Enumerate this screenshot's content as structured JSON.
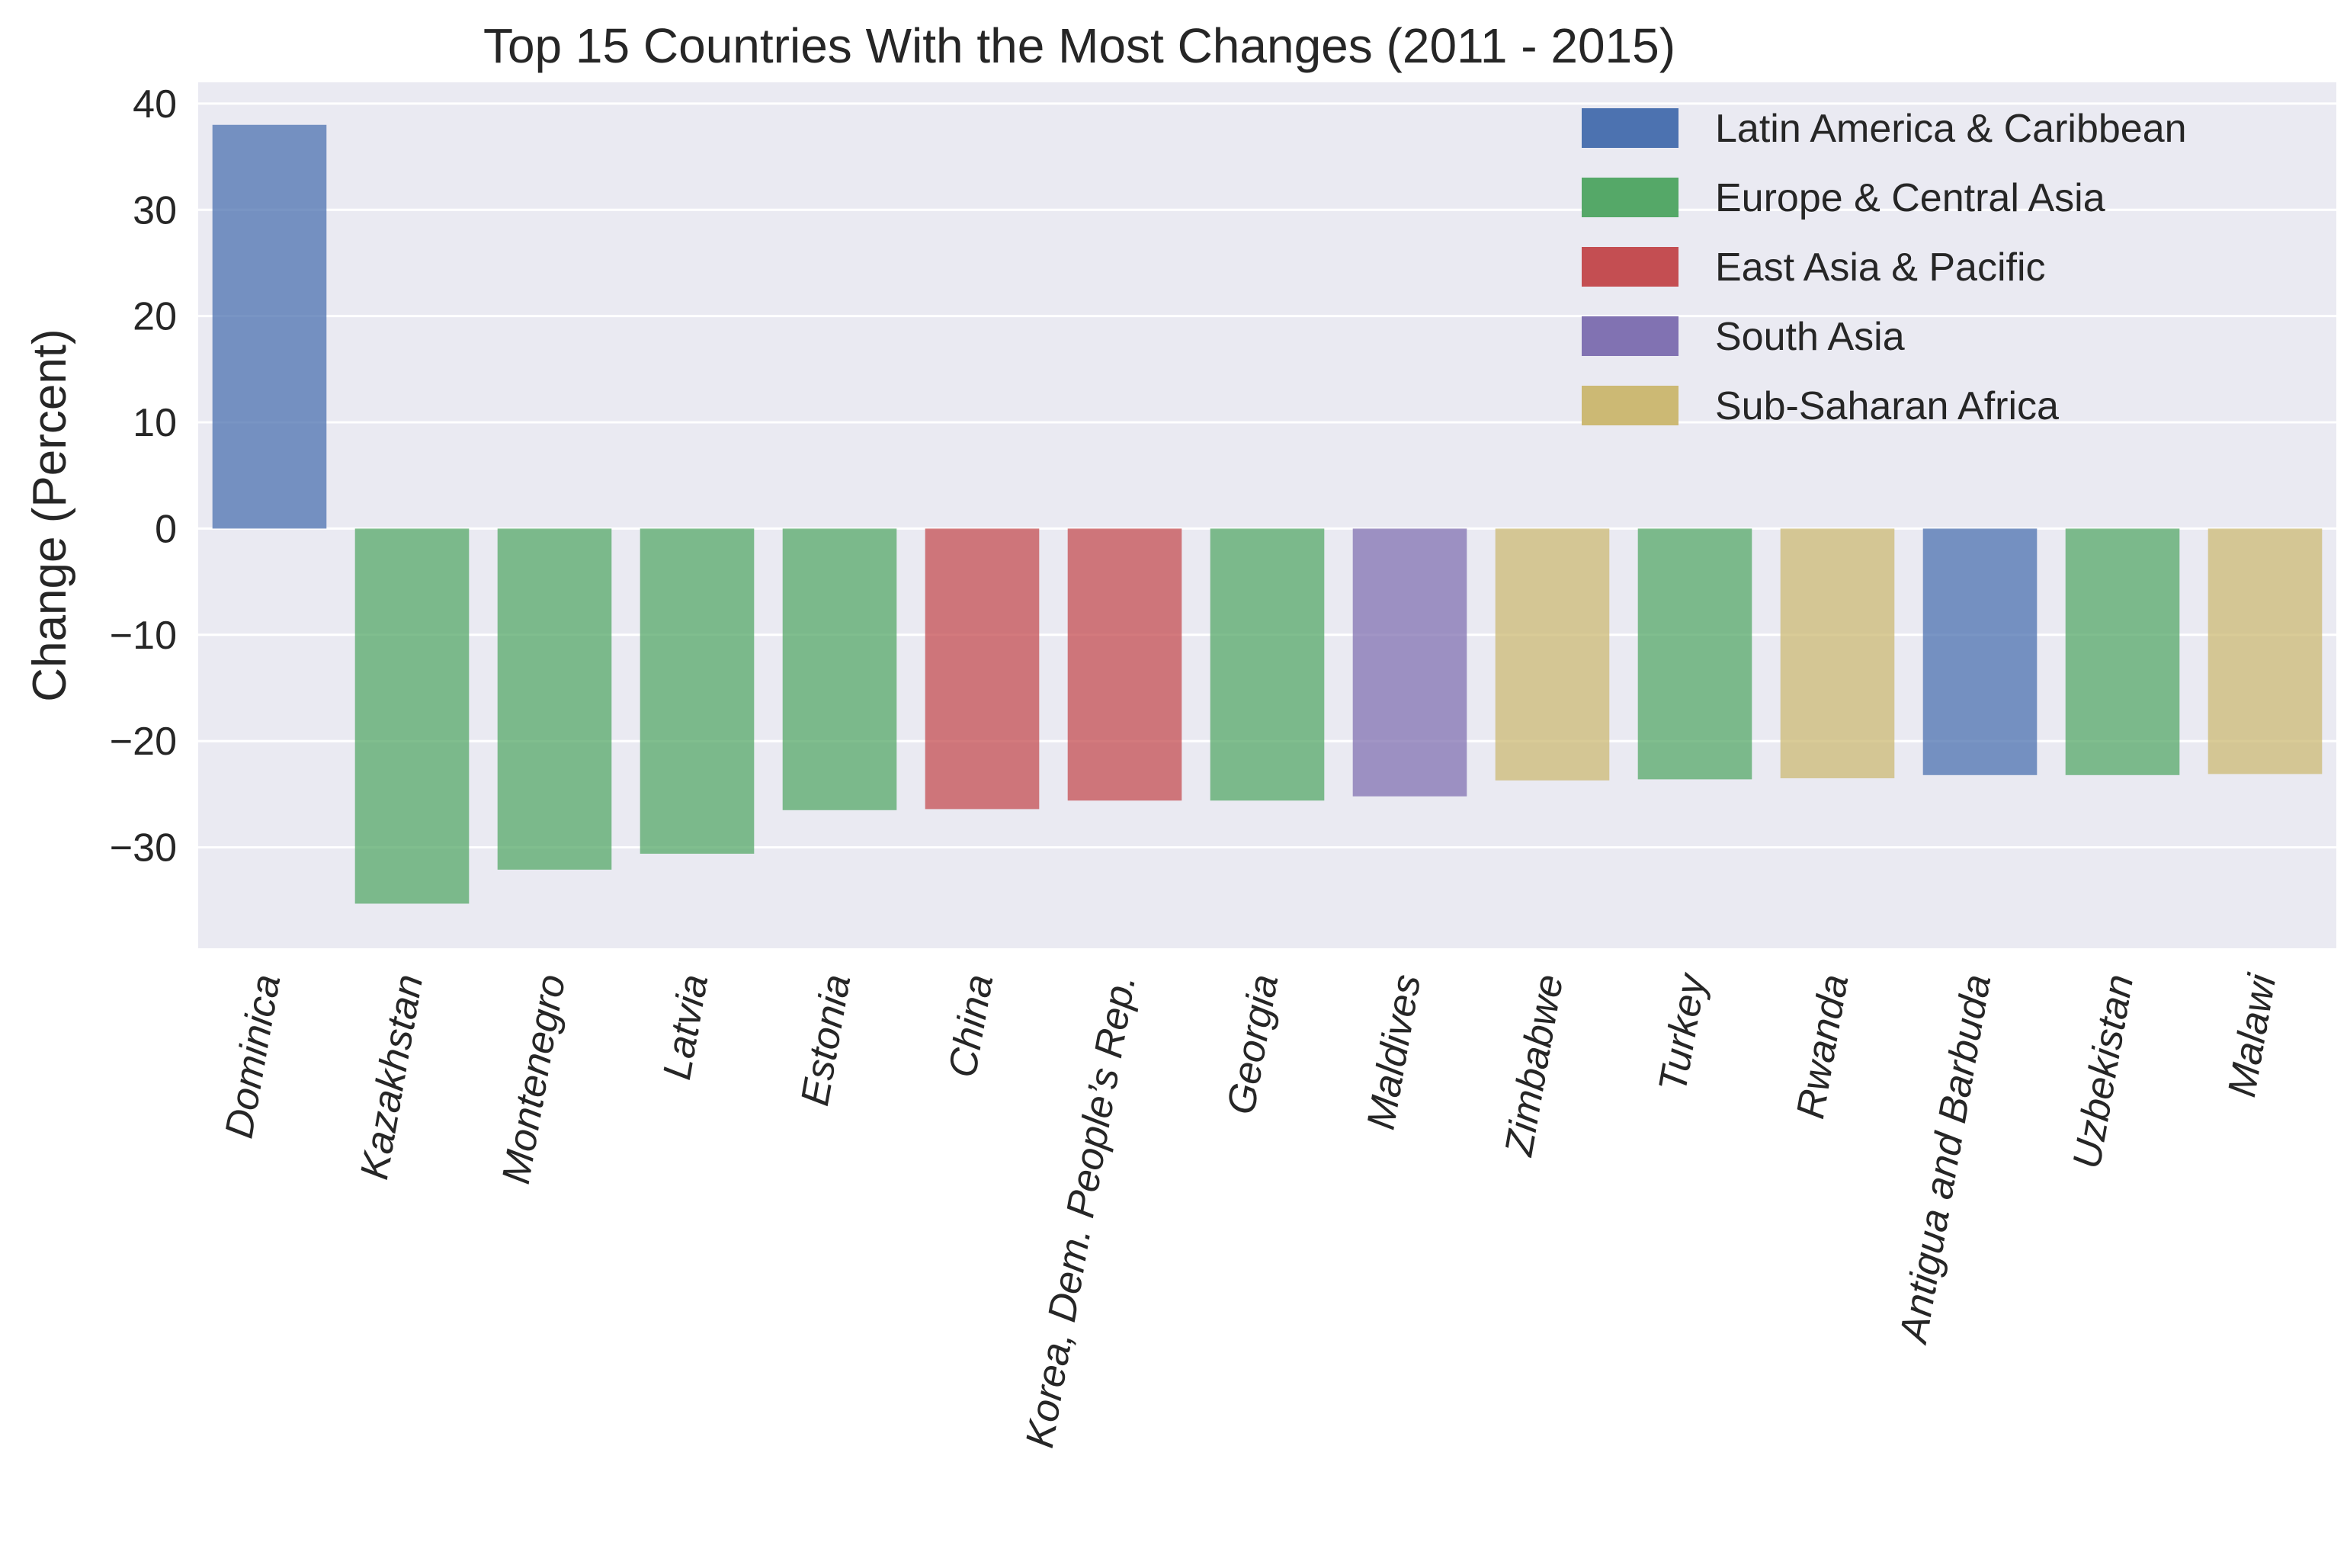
{
  "chart_data": {
    "type": "bar",
    "title": "Top 15 Countries With the Most Changes (2011 - 2015)",
    "xlabel": "",
    "ylabel": "Change (Percent)",
    "ylim": [
      -39.5,
      42
    ],
    "yticks": [
      40,
      30,
      20,
      10,
      0,
      -10,
      -20,
      -30
    ],
    "ytick_labels": [
      "40",
      "30",
      "20",
      "10",
      "0",
      "−10",
      "−20",
      "−30"
    ],
    "grid": true,
    "legend_position": "top-right",
    "categories": [
      "Dominica",
      "Kazakhstan",
      "Montenegro",
      "Latvia",
      "Estonia",
      "China",
      "Korea, Dem. People’s Rep.",
      "Georgia",
      "Maldives",
      "Zimbabwe",
      "Turkey",
      "Rwanda",
      "Antigua and Barbuda",
      "Uzbekistan",
      "Malawi"
    ],
    "values": [
      38.0,
      -35.3,
      -32.1,
      -30.6,
      -26.5,
      -26.4,
      -25.6,
      -25.6,
      -25.2,
      -23.7,
      -23.6,
      -23.5,
      -23.2,
      -23.2,
      -23.1
    ],
    "regions": [
      "Latin America & Caribbean",
      "Europe & Central Asia",
      "Europe & Central Asia",
      "Europe & Central Asia",
      "Europe & Central Asia",
      "East Asia & Pacific",
      "East Asia & Pacific",
      "Europe & Central Asia",
      "South Asia",
      "Sub-Saharan Africa",
      "Europe & Central Asia",
      "Sub-Saharan Africa",
      "Latin America & Caribbean",
      "Europe & Central Asia",
      "Sub-Saharan Africa"
    ],
    "legend": [
      {
        "name": "Latin America & Caribbean",
        "color": "#4c72b0"
      },
      {
        "name": "Europe & Central Asia",
        "color": "#55a868"
      },
      {
        "name": "East Asia & Pacific",
        "color": "#c44e52"
      },
      {
        "name": "South Asia",
        "color": "#8172b2"
      },
      {
        "name": "Sub-Saharan Africa",
        "color": "#ccb974"
      }
    ],
    "bar_opacity": 0.75,
    "background_color": "#eaeaf2",
    "grid_color": "#ffffff"
  }
}
